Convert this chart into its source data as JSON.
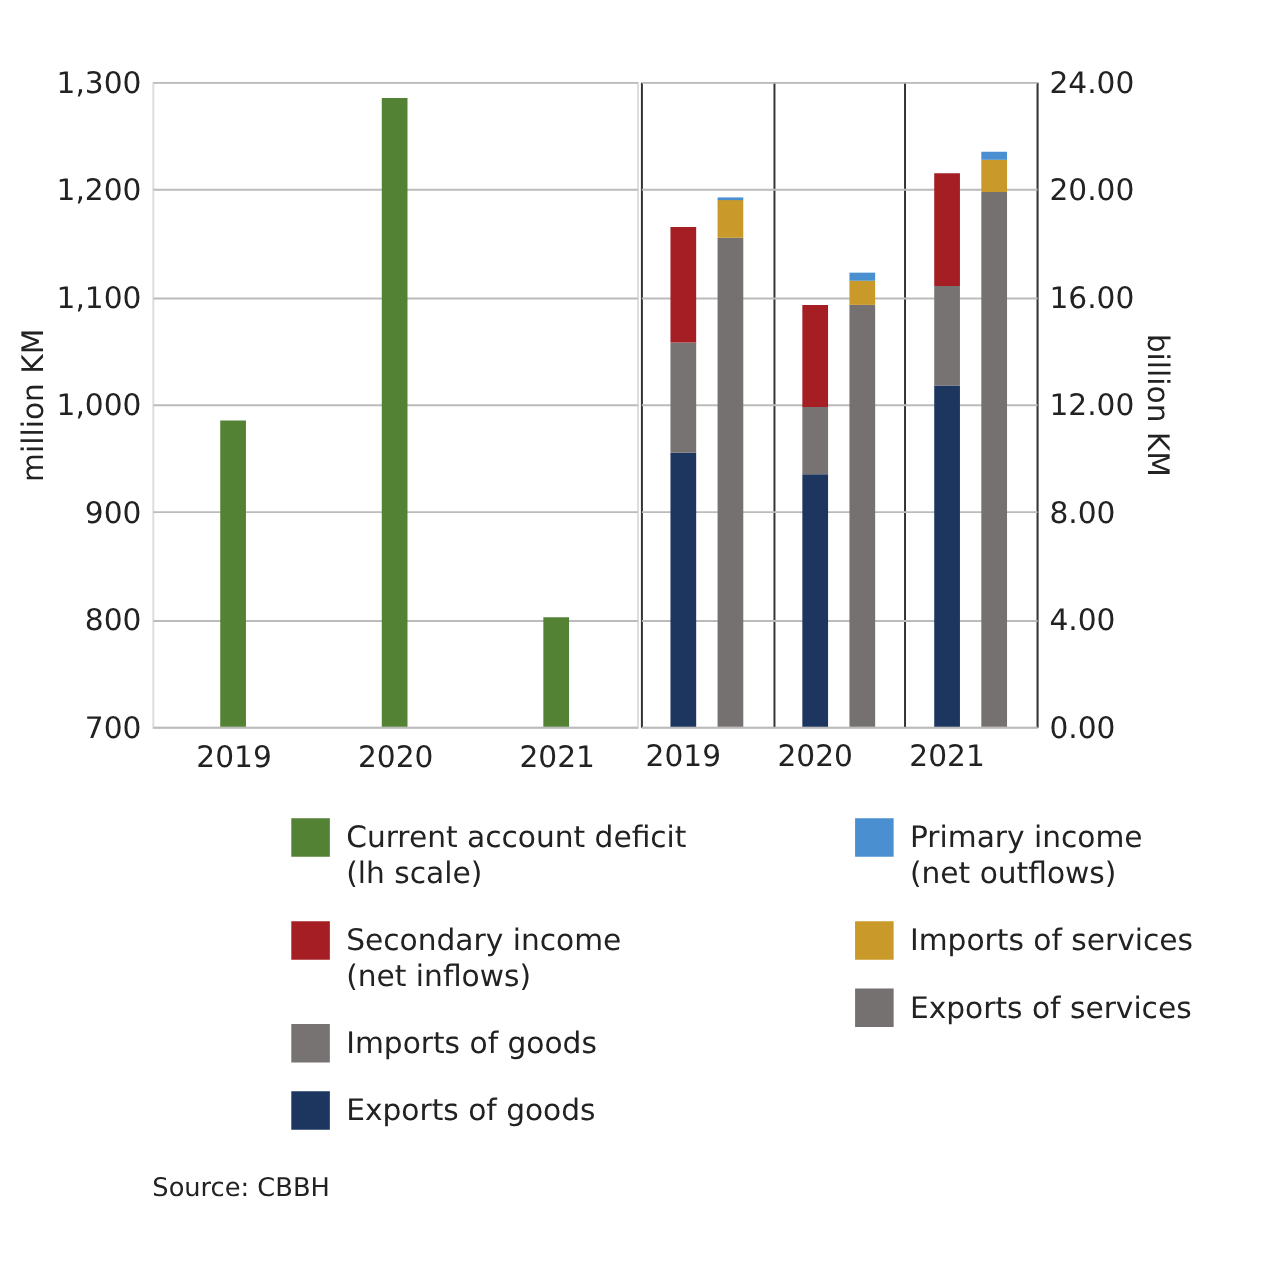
{
  "chart_data": [
    {
      "type": "bar",
      "categories": [
        "2019",
        "2020",
        "2021"
      ],
      "ylabel": "million KM",
      "ylim": [
        700,
        1300
      ],
      "yticks": [
        700,
        800,
        900,
        {
          "value": 1000,
          "label": "1,000"
        },
        {
          "value": 1100,
          "label": "1,100"
        },
        {
          "value": 1200,
          "label": "1,200"
        },
        {
          "value": 1300,
          "label": "1,300"
        }
      ],
      "grid": "y",
      "legend": "bottom",
      "series": [
        {
          "name": "Current account deficit (lh scale)",
          "color": "#548235",
          "values": [
            985,
            1285,
            802
          ]
        }
      ]
    },
    {
      "type": "bar",
      "stacked": true,
      "categories": [
        "2019",
        null,
        "2020",
        null,
        "2021",
        null
      ],
      "y2label": "billion KM",
      "y2lim": [
        0,
        24
      ],
      "y2ticks": [
        {
          "value": 0,
          "label": "0.00"
        },
        {
          "value": 4,
          "label": "4.00"
        },
        {
          "value": 8,
          "label": "8.00"
        },
        {
          "value": 12,
          "label": "12.00"
        },
        {
          "value": 16,
          "label": "16.00"
        },
        {
          "value": 20,
          "label": "20.00"
        },
        {
          "value": 24,
          "label": "24.00"
        }
      ],
      "grid": "y",
      "legend": "bottom",
      "annotations": [
        "Source: CBBH"
      ],
      "series": [
        {
          "name": "Exports of goods",
          "color": "#1c3660",
          "axis": "y2",
          "values": [
            10.2,
            null,
            9.4,
            null,
            12.7,
            null
          ]
        },
        {
          "name": "Imports of goods",
          "color": "#777372",
          "axis": "y2",
          "values": [
            4.1,
            null,
            2.5,
            null,
            3.7,
            null
          ]
        },
        {
          "name": "Secondary income (net inflows)",
          "color": "#a51e24",
          "axis": "y2",
          "values": [
            4.3,
            null,
            3.8,
            null,
            4.2,
            null
          ]
        },
        {
          "name": "Exports of services",
          "color": "#757170",
          "axis": "y2",
          "values": [
            null,
            18.2,
            null,
            15.7,
            null,
            19.9
          ]
        },
        {
          "name": "Imports of services",
          "color": "#c9992a",
          "axis": "y2",
          "values": [
            null,
            1.4,
            null,
            0.9,
            null,
            1.2
          ]
        },
        {
          "name": "Primary income (net outflows)",
          "color": "#4a90d0",
          "axis": "y2",
          "values": [
            null,
            0.1,
            null,
            0.3,
            null,
            0.3
          ]
        }
      ]
    }
  ]
}
